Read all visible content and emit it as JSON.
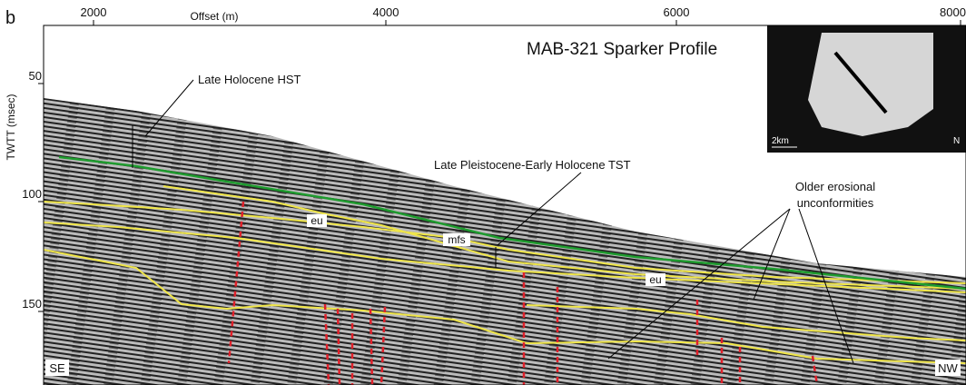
{
  "panel_label": "b",
  "x_axis": {
    "title": "Offset (m)",
    "ticks": [
      2000,
      4000,
      6000,
      8000
    ]
  },
  "y_axis": {
    "title": "TWTT (msec)",
    "ticks": [
      50,
      100,
      150
    ]
  },
  "title": "MAB-321 Sparker Profile",
  "annotations": {
    "hst": "Late Holocene HST",
    "tst": "Late Pleistocene-Early Holocene TST",
    "older": [
      "Older erosional",
      "unconformities"
    ],
    "eu_left": "eu",
    "eu_right": "eu",
    "mfs": "mfs",
    "se": "SE",
    "nw": "NW"
  },
  "inset": {
    "scale": "2km",
    "north": "N"
  }
}
